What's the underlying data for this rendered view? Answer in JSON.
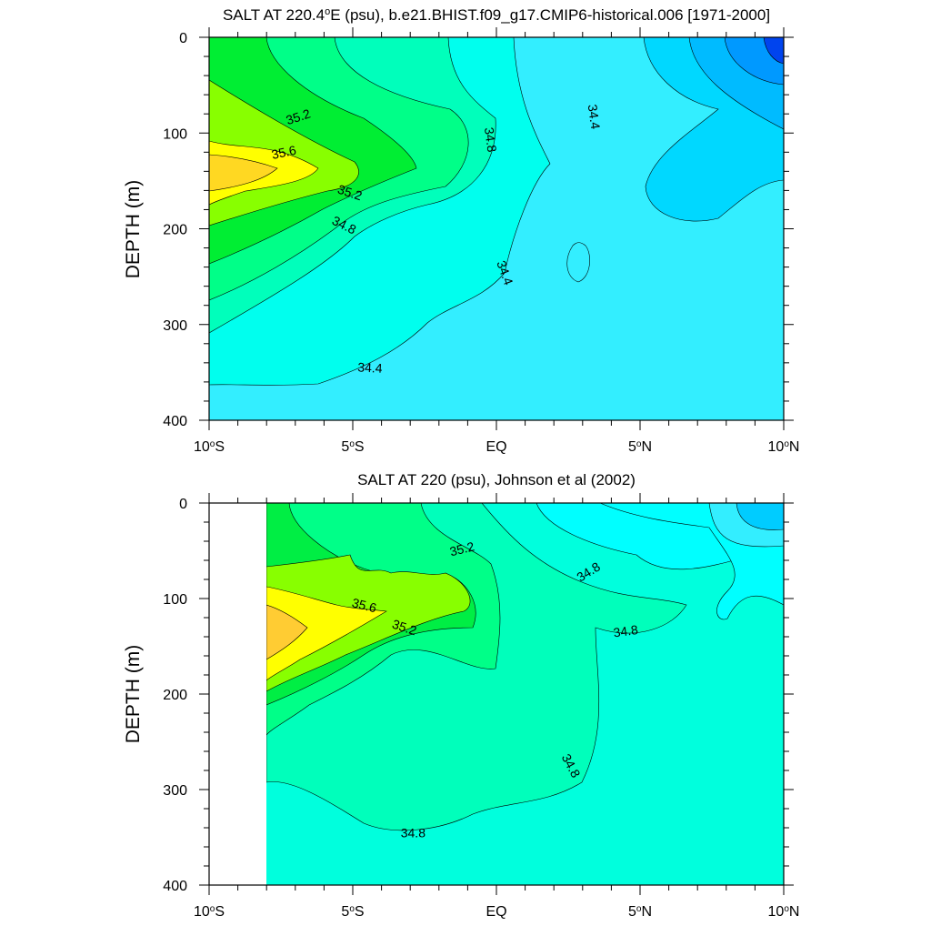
{
  "chart_data": [
    {
      "type": "contour",
      "title": "SALT AT 220.4",
      "title_degree": "o",
      "title_suffix": "E (psu), b.e21.BHIST.f09_g17.CMIP6-historical.006 [1971-2000]",
      "ylabel": "DEPTH (m)",
      "xlim": [
        -10,
        10
      ],
      "ylim": [
        400,
        0
      ],
      "x_ticks": [
        {
          "value": -10,
          "label": "10",
          "deg": "o",
          "hemi": "S"
        },
        {
          "value": -5,
          "label": "5",
          "deg": "o",
          "hemi": "S"
        },
        {
          "value": 0,
          "label": "EQ",
          "deg": "",
          "hemi": ""
        },
        {
          "value": 5,
          "label": "5",
          "deg": "o",
          "hemi": "N"
        },
        {
          "value": 10,
          "label": "10",
          "deg": "o",
          "hemi": "N"
        }
      ],
      "y_ticks": [
        {
          "value": 0,
          "label": "0"
        },
        {
          "value": 100,
          "label": "100"
        },
        {
          "value": 200,
          "label": "200"
        },
        {
          "value": 300,
          "label": "300"
        },
        {
          "value": 400,
          "label": "400"
        }
      ],
      "data_xmin": -10,
      "contour_labels": [
        {
          "text": "35.2",
          "x": -6.9,
          "y": 83,
          "angle": 18
        },
        {
          "text": "35.6",
          "x": -7.4,
          "y": 120,
          "angle": 12
        },
        {
          "text": "35.2",
          "x": -5.1,
          "y": 162,
          "angle": -18
        },
        {
          "text": "34.8",
          "x": -5.3,
          "y": 196,
          "angle": -26
        },
        {
          "text": "34.8",
          "x": -0.2,
          "y": 107,
          "angle": -82
        },
        {
          "text": "34.4",
          "x": 3.4,
          "y": 83,
          "angle": -82
        },
        {
          "text": "34.4",
          "x": 0.3,
          "y": 246,
          "angle": -70
        },
        {
          "text": "34.4",
          "x": -4.4,
          "y": 345,
          "angle": -3
        }
      ]
    },
    {
      "type": "contour",
      "title": "SALT AT 220 (psu), Johnson et al (2002)",
      "ylabel": "DEPTH (m)",
      "xlim": [
        -10,
        10
      ],
      "ylim": [
        400,
        0
      ],
      "x_ticks": [
        {
          "value": -10,
          "label": "10",
          "deg": "o",
          "hemi": "S"
        },
        {
          "value": -5,
          "label": "5",
          "deg": "o",
          "hemi": "S"
        },
        {
          "value": 0,
          "label": "EQ",
          "deg": "",
          "hemi": ""
        },
        {
          "value": 5,
          "label": "5",
          "deg": "o",
          "hemi": "N"
        },
        {
          "value": 10,
          "label": "10",
          "deg": "o",
          "hemi": "N"
        }
      ],
      "y_ticks": [
        {
          "value": 0,
          "label": "0"
        },
        {
          "value": 100,
          "label": "100"
        },
        {
          "value": 200,
          "label": "200"
        },
        {
          "value": 300,
          "label": "300"
        },
        {
          "value": 400,
          "label": "400"
        }
      ],
      "data_xmin": -8,
      "contour_labels": [
        {
          "text": "35.2",
          "x": -1.2,
          "y": 48,
          "angle": 14
        },
        {
          "text": "35.6",
          "x": -4.6,
          "y": 107,
          "angle": -14
        },
        {
          "text": "35.2",
          "x": -3.2,
          "y": 130,
          "angle": -18
        },
        {
          "text": "34.8",
          "x": 3.2,
          "y": 72,
          "angle": 32
        },
        {
          "text": "34.8",
          "x": 4.5,
          "y": 134,
          "angle": 8
        },
        {
          "text": "34.8",
          "x": 2.6,
          "y": 275,
          "angle": -62
        },
        {
          "text": "34.8",
          "x": -2.9,
          "y": 345,
          "angle": 0
        }
      ]
    }
  ]
}
